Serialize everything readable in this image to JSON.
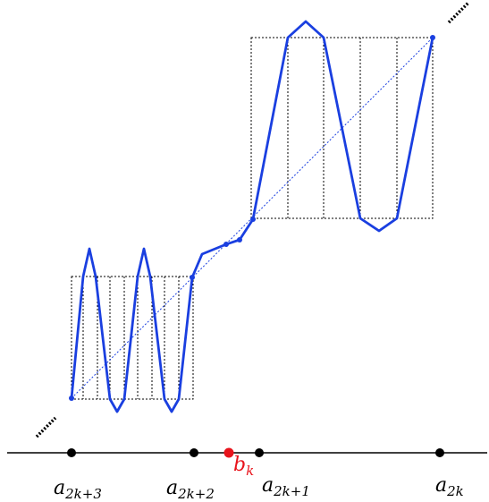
{
  "diagram": {
    "labels": {
      "a_2k3": {
        "base": "a",
        "sub": "2k+3"
      },
      "a_2k2": {
        "base": "a",
        "sub": "2k+2"
      },
      "b_k": {
        "base": "b",
        "sub": "k"
      },
      "a_2k1": {
        "base": "a",
        "sub": "2k+1"
      },
      "a_2k": {
        "base": "a",
        "sub": "2k"
      }
    },
    "colors": {
      "curve": "#1a3fe0",
      "axis": "#000000",
      "highlight_point": "#e8141c",
      "box_lines": "#000000"
    }
  }
}
